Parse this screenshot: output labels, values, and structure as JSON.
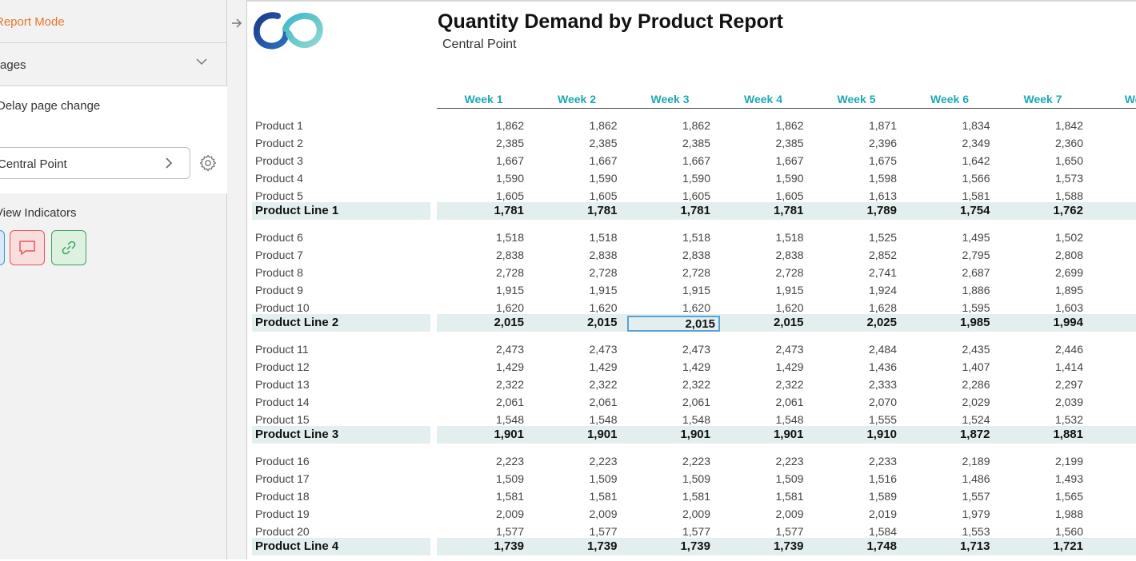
{
  "sidebar": {
    "mode_label": "Report Mode",
    "pages_label": "Pages",
    "delay_label": "Delay page change",
    "location_value": "Central Point",
    "view_indicators_label": "View Indicators",
    "indicator_colors": {
      "blue": "#4a8cc8",
      "red": "#e05a5a",
      "green": "#3aa45a"
    }
  },
  "report": {
    "title": "Quantity Demand by Product Report",
    "subtitle": "Central Point",
    "weeks": [
      "Week 1",
      "Week 2",
      "Week 3",
      "Week 4",
      "Week 5",
      "Week 6",
      "Week 7",
      "Wee"
    ],
    "selected_cell": {
      "row": "Product Line 2",
      "week": "Week 3"
    },
    "accent_color": "#1fa8b4",
    "groups": [
      {
        "products": [
          {
            "name": "Product 1",
            "values": [
              "1,862",
              "1,862",
              "1,862",
              "1,862",
              "1,871",
              "1,834",
              "1,842"
            ]
          },
          {
            "name": "Product 2",
            "values": [
              "2,385",
              "2,385",
              "2,385",
              "2,385",
              "2,396",
              "2,349",
              "2,360"
            ]
          },
          {
            "name": "Product 3",
            "values": [
              "1,667",
              "1,667",
              "1,667",
              "1,667",
              "1,675",
              "1,642",
              "1,650"
            ]
          },
          {
            "name": "Product 4",
            "values": [
              "1,590",
              "1,590",
              "1,590",
              "1,590",
              "1,598",
              "1,566",
              "1,573"
            ]
          },
          {
            "name": "Product 5",
            "values": [
              "1,605",
              "1,605",
              "1,605",
              "1,605",
              "1,613",
              "1,581",
              "1,588"
            ]
          }
        ],
        "line": {
          "name": "Product Line 1",
          "values": [
            "1,781",
            "1,781",
            "1,781",
            "1,781",
            "1,789",
            "1,754",
            "1,762"
          ]
        }
      },
      {
        "products": [
          {
            "name": "Product 6",
            "values": [
              "1,518",
              "1,518",
              "1,518",
              "1,518",
              "1,525",
              "1,495",
              "1,502"
            ]
          },
          {
            "name": "Product 7",
            "values": [
              "2,838",
              "2,838",
              "2,838",
              "2,838",
              "2,852",
              "2,795",
              "2,808"
            ]
          },
          {
            "name": "Product 8",
            "values": [
              "2,728",
              "2,728",
              "2,728",
              "2,728",
              "2,741",
              "2,687",
              "2,699"
            ]
          },
          {
            "name": "Product 9",
            "values": [
              "1,915",
              "1,915",
              "1,915",
              "1,915",
              "1,924",
              "1,886",
              "1,895"
            ]
          },
          {
            "name": "Product 10",
            "values": [
              "1,620",
              "1,620",
              "1,620",
              "1,620",
              "1,628",
              "1,595",
              "1,603"
            ]
          }
        ],
        "line": {
          "name": "Product Line 2",
          "values": [
            "2,015",
            "2,015",
            "2,015",
            "2,015",
            "2,025",
            "1,985",
            "1,994"
          ]
        }
      },
      {
        "products": [
          {
            "name": "Product 11",
            "values": [
              "2,473",
              "2,473",
              "2,473",
              "2,473",
              "2,484",
              "2,435",
              "2,446"
            ]
          },
          {
            "name": "Product 12",
            "values": [
              "1,429",
              "1,429",
              "1,429",
              "1,429",
              "1,436",
              "1,407",
              "1,414"
            ]
          },
          {
            "name": "Product 13",
            "values": [
              "2,322",
              "2,322",
              "2,322",
              "2,322",
              "2,333",
              "2,286",
              "2,297"
            ]
          },
          {
            "name": "Product 14",
            "values": [
              "2,061",
              "2,061",
              "2,061",
              "2,061",
              "2,070",
              "2,029",
              "2,039"
            ]
          },
          {
            "name": "Product 15",
            "values": [
              "1,548",
              "1,548",
              "1,548",
              "1,548",
              "1,555",
              "1,524",
              "1,532"
            ]
          }
        ],
        "line": {
          "name": "Product Line 3",
          "values": [
            "1,901",
            "1,901",
            "1,901",
            "1,901",
            "1,910",
            "1,872",
            "1,881"
          ]
        }
      },
      {
        "products": [
          {
            "name": "Product 16",
            "values": [
              "2,223",
              "2,223",
              "2,223",
              "2,223",
              "2,233",
              "2,189",
              "2,199"
            ]
          },
          {
            "name": "Product 17",
            "values": [
              "1,509",
              "1,509",
              "1,509",
              "1,509",
              "1,516",
              "1,486",
              "1,493"
            ]
          },
          {
            "name": "Product 18",
            "values": [
              "1,581",
              "1,581",
              "1,581",
              "1,581",
              "1,589",
              "1,557",
              "1,565"
            ]
          },
          {
            "name": "Product 19",
            "values": [
              "2,009",
              "2,009",
              "2,009",
              "2,009",
              "2,019",
              "1,979",
              "1,988"
            ]
          },
          {
            "name": "Product 20",
            "values": [
              "1,577",
              "1,577",
              "1,577",
              "1,577",
              "1,584",
              "1,553",
              "1,560"
            ]
          }
        ],
        "line": {
          "name": "Product Line 4",
          "values": [
            "1,739",
            "1,739",
            "1,739",
            "1,739",
            "1,748",
            "1,713",
            "1,721"
          ]
        }
      }
    ]
  }
}
